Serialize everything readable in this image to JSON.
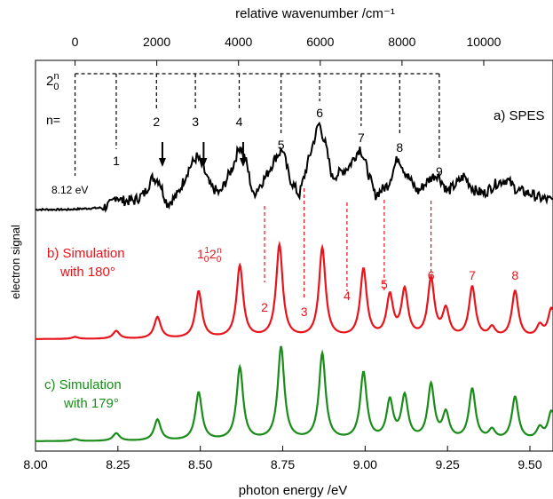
{
  "chart_data": {
    "type": "line",
    "x_label": "photon energy /eV",
    "top_axis_label": "relative wavenumber /cm⁻¹",
    "y_label": "electron signal",
    "xlim": [
      8.0,
      9.57
    ],
    "x_ticks": [
      "8.00",
      "8.25",
      "8.50",
      "8.75",
      "9.00",
      "9.25",
      "9.50"
    ],
    "x_tick_values": [
      8.0,
      8.25,
      8.5,
      8.75,
      9.0,
      9.25,
      9.5
    ],
    "top_ticks": [
      "0",
      "2000",
      "4000",
      "6000",
      "8000",
      "10000"
    ],
    "top_tick_values": [
      0,
      2000,
      4000,
      6000,
      8000,
      10000
    ],
    "onset_label": "8.12 eV",
    "onset_energy": 8.12,
    "progression_prefix": "2",
    "progression_sup": "n",
    "progression_sub": "0",
    "n_label": "n=",
    "arrow_positions": [
      8.385,
      8.51,
      8.63
    ],
    "progression_1_2n": {
      "prefix": "1",
      "sup1": "1",
      "sub1": "0",
      "mid": "2",
      "sup2": "n",
      "sub2": "0"
    },
    "panels": [
      {
        "label": "a) SPES",
        "color": "#000000",
        "peaks": [
          {
            "n": "1",
            "x": 8.245
          },
          {
            "n": "2",
            "x": 8.367
          },
          {
            "n": "3",
            "x": 8.485
          },
          {
            "n": "4",
            "x": 8.618
          },
          {
            "n": "5",
            "x": 8.745
          },
          {
            "n": "6",
            "x": 8.862
          },
          {
            "n": "7",
            "x": 8.988
          },
          {
            "n": "8",
            "x": 9.105
          },
          {
            "n": "9",
            "x": 9.225
          }
        ]
      },
      {
        "label_line1": "b) Simulation",
        "label_line2": "with 180°",
        "color": "#e8141b",
        "peaks": [
          {
            "n": "2",
            "x": 8.695
          },
          {
            "n": "3",
            "x": 8.815
          },
          {
            "n": "4",
            "x": 8.945
          },
          {
            "n": "5",
            "x": 9.058
          },
          {
            "n": "6",
            "x": 9.2
          },
          {
            "n": "7",
            "x": 9.325
          },
          {
            "n": "8",
            "x": 9.455
          }
        ]
      },
      {
        "label_line1": "c) Simulation",
        "label_line2": "with 179°",
        "color": "#1a8c1a"
      }
    ],
    "series": [
      {
        "points": [
          [
            8.0,
            0.02
          ],
          [
            8.1,
            0.02
          ],
          [
            8.12,
            0.025
          ],
          [
            8.2,
            0.04
          ],
          [
            8.23,
            0.08
          ],
          [
            8.245,
            0.18
          ],
          [
            8.26,
            0.12
          ],
          [
            8.3,
            0.12
          ],
          [
            8.33,
            0.2
          ],
          [
            8.355,
            0.38
          ],
          [
            8.375,
            0.35
          ],
          [
            8.39,
            0.18
          ],
          [
            8.4,
            0.08
          ],
          [
            8.43,
            0.18
          ],
          [
            8.465,
            0.48
          ],
          [
            8.49,
            0.62
          ],
          [
            8.51,
            0.48
          ],
          [
            8.53,
            0.28
          ],
          [
            8.56,
            0.2
          ],
          [
            8.6,
            0.52
          ],
          [
            8.62,
            0.75
          ],
          [
            8.64,
            0.55
          ],
          [
            8.66,
            0.18
          ],
          [
            8.7,
            0.4
          ],
          [
            8.73,
            0.62
          ],
          [
            8.75,
            0.7
          ],
          [
            8.77,
            0.38
          ],
          [
            8.8,
            0.18
          ],
          [
            8.83,
            0.6
          ],
          [
            8.86,
            1.0
          ],
          [
            8.88,
            0.75
          ],
          [
            8.9,
            0.38
          ],
          [
            8.95,
            0.5
          ],
          [
            8.985,
            0.72
          ],
          [
            9.0,
            0.55
          ],
          [
            9.03,
            0.18
          ],
          [
            9.07,
            0.3
          ],
          [
            9.1,
            0.62
          ],
          [
            9.12,
            0.45
          ],
          [
            9.16,
            0.22
          ],
          [
            9.2,
            0.38
          ],
          [
            9.22,
            0.42
          ],
          [
            9.25,
            0.22
          ],
          [
            9.28,
            0.32
          ],
          [
            9.3,
            0.4
          ],
          [
            9.33,
            0.24
          ],
          [
            9.36,
            0.2
          ],
          [
            9.4,
            0.32
          ],
          [
            9.43,
            0.36
          ],
          [
            9.46,
            0.24
          ],
          [
            9.5,
            0.2
          ],
          [
            9.53,
            0.15
          ],
          [
            9.57,
            0.12
          ]
        ]
      },
      {
        "peaks": [
          [
            8.12,
            0.02
          ],
          [
            8.245,
            0.08
          ],
          [
            8.37,
            0.22
          ],
          [
            8.495,
            0.48
          ],
          [
            8.62,
            0.74
          ],
          [
            8.74,
            0.95
          ],
          [
            8.87,
            0.92
          ],
          [
            8.995,
            0.7
          ],
          [
            9.075,
            0.42
          ],
          [
            9.12,
            0.48
          ],
          [
            9.2,
            0.6
          ],
          [
            9.245,
            0.28
          ],
          [
            9.325,
            0.52
          ],
          [
            9.385,
            0.1
          ],
          [
            9.455,
            0.48
          ],
          [
            9.53,
            0.12
          ],
          [
            9.565,
            0.3
          ]
        ]
      },
      {
        "peaks": [
          [
            8.12,
            0.02
          ],
          [
            8.245,
            0.08
          ],
          [
            8.37,
            0.22
          ],
          [
            8.495,
            0.5
          ],
          [
            8.62,
            0.76
          ],
          [
            8.745,
            0.97
          ],
          [
            8.87,
            0.9
          ],
          [
            8.995,
            0.7
          ],
          [
            9.075,
            0.4
          ],
          [
            9.12,
            0.45
          ],
          [
            9.2,
            0.57
          ],
          [
            9.245,
            0.27
          ],
          [
            9.325,
            0.53
          ],
          [
            9.385,
            0.1
          ],
          [
            9.455,
            0.45
          ],
          [
            9.53,
            0.12
          ],
          [
            9.565,
            0.3
          ]
        ]
      }
    ]
  }
}
